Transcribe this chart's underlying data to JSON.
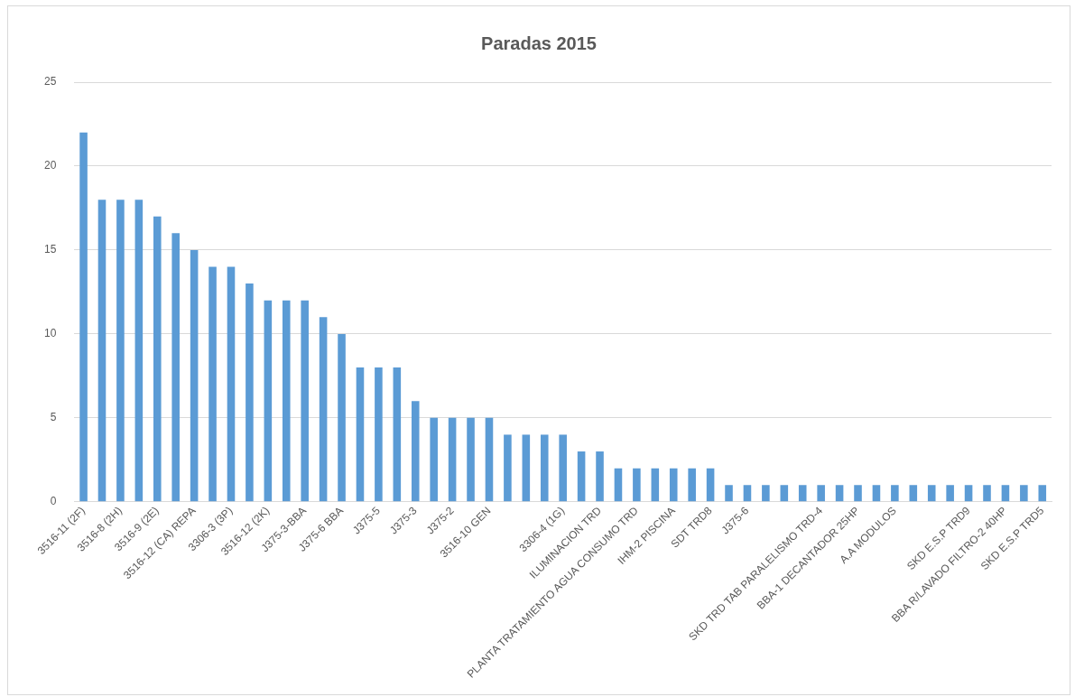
{
  "chart_data": {
    "type": "bar",
    "title": "Paradas 2015",
    "categories": [
      "3516-11 (2F)",
      null,
      "3516-8 (2H)",
      null,
      "3516-9 (2E)",
      null,
      "3516-12 (CA) REPA",
      null,
      "3306-3 (3P)",
      null,
      "3516-12 (2K)",
      null,
      "J375-3-BBA",
      null,
      "J375-6 BBA",
      null,
      "J375-5",
      null,
      "J375-3",
      null,
      "J375-2",
      null,
      "3516-10 GEN",
      null,
      null,
      null,
      "3306-4 (1G)",
      null,
      "ILUMINACION TRD",
      null,
      "PLANTA TRATAMIENTO AGUA CONSUMO TRD",
      null,
      "IHM-2 PISCINA",
      null,
      "SDT TRD8",
      null,
      "J375-6",
      null,
      null,
      null,
      "SKD TRD TAB PARALELISMO TRD-4",
      null,
      "BBA-1 DECANTADOR 25HP",
      null,
      "A.A MODULOS",
      null,
      null,
      null,
      "SKD E.S.P TRD9",
      null,
      "BBA R/LAVADO FILTRO-2 40HP",
      null,
      "SKD E.S.P TRD5"
    ],
    "values": [
      22,
      18,
      18,
      18,
      17,
      16,
      15,
      14,
      14,
      13,
      12,
      12,
      12,
      11,
      10,
      8,
      8,
      8,
      6,
      5,
      5,
      5,
      5,
      4,
      4,
      4,
      4,
      3,
      3,
      2,
      2,
      2,
      2,
      2,
      2,
      1,
      1,
      1,
      1,
      1,
      1,
      1,
      1,
      1,
      1,
      1,
      1,
      1,
      1,
      1,
      1,
      1,
      1
    ],
    "color": "#5b9bd5",
    "ylim": [
      0,
      25
    ],
    "yticks": [
      0,
      5,
      10,
      15,
      20,
      25
    ],
    "grid": "y",
    "legend": false
  }
}
